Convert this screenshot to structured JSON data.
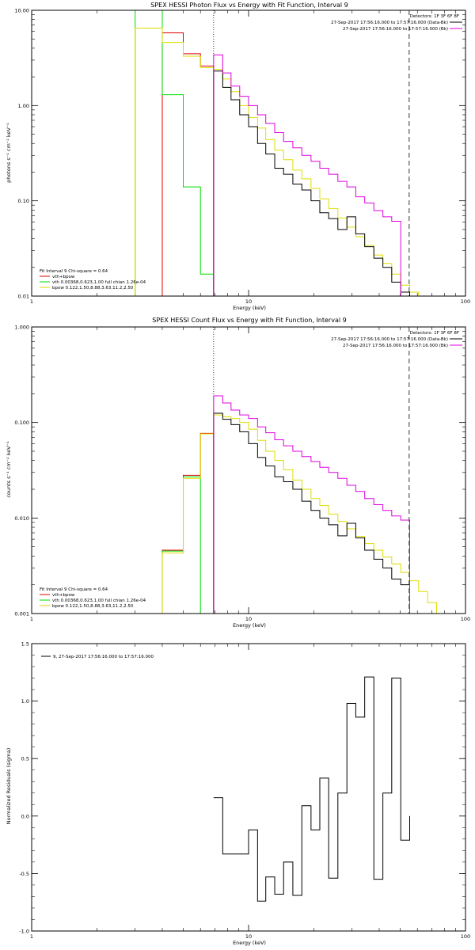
{
  "colors": {
    "data": "#000000",
    "model_total": "#dd00dd",
    "vth": "#00dd00",
    "bpow": "#dddd00",
    "total_fit": "#dd0000",
    "marker": "#000000"
  },
  "chart_data": [
    {
      "type": "line",
      "title": "SPEX HESSI Photon Flux vs Energy with Fit Function, Interval 9",
      "xlabel": "Energy (keV)",
      "ylabel": "photons s⁻¹ cm⁻² keV⁻¹",
      "xscale": "log",
      "yscale": "log",
      "xlim": [
        1,
        100
      ],
      "ylim": [
        0.01,
        10
      ],
      "xticks": [
        1,
        10,
        100
      ],
      "xtick_labels": [
        "1",
        "10",
        "100"
      ],
      "yticks": [
        0.01,
        0.1,
        1,
        10
      ],
      "ytick_labels": [
        "0.01",
        "0.10",
        "1.00",
        "10.00"
      ],
      "vlines": [
        {
          "x": 6.9,
          "style": "dotted"
        },
        {
          "x": 55,
          "style": "dashed"
        }
      ],
      "edges": [
        3,
        4,
        5,
        6,
        6.9,
        7.6,
        8.3,
        9.1,
        10,
        11,
        12,
        13.2,
        14.5,
        16,
        17.6,
        19.4,
        21.3,
        23.4,
        25.8,
        28.4,
        31.2,
        34.3,
        37.8,
        41.6,
        45.7,
        50.3,
        55.3,
        60.8,
        66.9,
        73.6
      ],
      "series": [
        {
          "name": "vth+bpow",
          "color": "#dd0000",
          "values": [
            null,
            5.8,
            3.5,
            2.6,
            null,
            null,
            null,
            null,
            null,
            null,
            null,
            null,
            null,
            null,
            null,
            null,
            null,
            null,
            null,
            null,
            null,
            null,
            null,
            null,
            null,
            null,
            null,
            null,
            null
          ]
        },
        {
          "name": "vth 0.00368,0.623,1.00  full chian 1.26e-04",
          "color": "#00dd00",
          "values": [
            10,
            1.3,
            0.14,
            0.017,
            null,
            null,
            null,
            null,
            null,
            null,
            null,
            null,
            null,
            null,
            null,
            null,
            null,
            null,
            null,
            null,
            null,
            null,
            null,
            null,
            null,
            null,
            null,
            null,
            null
          ]
        },
        {
          "name": "bpow 0.122,1.50,8.88,3.63,11.2,2.50",
          "color": "#dddd00",
          "values": [
            6.5,
            4.6,
            3.3,
            2.5,
            2.4,
            1.9,
            1.4,
            1.0,
            0.75,
            0.58,
            0.44,
            0.34,
            0.27,
            0.21,
            0.17,
            0.135,
            0.105,
            0.083,
            0.066,
            0.053,
            0.042,
            0.034,
            0.027,
            0.022,
            0.017,
            0.013,
            0.011,
            0.01,
            0.009
          ]
        },
        {
          "name": "Detectors: 1F 3F 6F 8F  27-Sep-2017 17:56:16.000 to 17:57:16.000 (Data-Bk)",
          "color": "#000000",
          "values": [
            null,
            null,
            null,
            null,
            2.3,
            1.55,
            1.15,
            0.8,
            0.6,
            0.4,
            0.31,
            0.22,
            0.19,
            0.15,
            0.13,
            0.1,
            0.075,
            0.065,
            0.05,
            0.068,
            0.045,
            0.033,
            0.025,
            0.02,
            0.014,
            0.011,
            null,
            null,
            null
          ]
        },
        {
          "name": "27-Sep-2017 17:56:16.000 to 17:57:16.000 (Bk)",
          "color": "#dd00dd",
          "values": [
            null,
            null,
            null,
            null,
            3.4,
            2.2,
            1.6,
            1.25,
            1.0,
            0.8,
            0.65,
            0.52,
            0.42,
            0.36,
            0.3,
            0.26,
            0.22,
            0.19,
            0.16,
            0.14,
            0.11,
            0.095,
            0.079,
            0.068,
            0.061,
            null,
            null,
            null,
            null
          ]
        }
      ],
      "legend": {
        "position": "bottom-left",
        "header": "Fit Interval 9   Chi-square = 0.64",
        "entries": [
          {
            "label": "vth+bpow",
            "color": "#dd0000"
          },
          {
            "label": "vth 0.00368,0.623,1.00  full chian 1.26e-04",
            "color": "#00dd00"
          },
          {
            "label": "bpow 0.122,1.50,8.88,3.63,11.2,2.50",
            "color": "#dddd00"
          }
        ]
      },
      "legend2": {
        "position": "top-right",
        "header": "Detectors: 1F 3F 6F 8F",
        "entries": [
          {
            "label": "27-Sep-2017 17:56:16.000 to 17:57:16.000 (Data-Bk)",
            "color": "#000000"
          },
          {
            "label": "27-Sep-2017 17:56:16.000 to 17:57:16.000 (Bk)",
            "color": "#dd00dd"
          }
        ]
      }
    },
    {
      "type": "line",
      "title": "SPEX HESSI Count Flux vs Energy with Fit Function, Interval 9",
      "xlabel": "Energy (keV)",
      "ylabel": "counts s⁻¹ cm⁻² keV⁻¹",
      "xscale": "log",
      "yscale": "log",
      "xlim": [
        1,
        100
      ],
      "ylim": [
        0.001,
        1
      ],
      "xticks": [
        1,
        10,
        100
      ],
      "xtick_labels": [
        "1",
        "10",
        "100"
      ],
      "yticks": [
        0.001,
        0.01,
        0.1,
        1
      ],
      "ytick_labels": [
        "0.001",
        "0.010",
        "0.100",
        "1.000"
      ],
      "vlines": [
        {
          "x": 6.9,
          "style": "dotted"
        },
        {
          "x": 55,
          "style": "dashed"
        }
      ],
      "edges": [
        4,
        5,
        6,
        6.9,
        7.6,
        8.3,
        9.1,
        10,
        11,
        12,
        13.2,
        14.5,
        16,
        17.6,
        19.4,
        21.3,
        23.4,
        25.8,
        28.4,
        31.2,
        34.3,
        37.8,
        41.6,
        45.7,
        50.3,
        55.3,
        60.8,
        66.9,
        73.6,
        81
      ],
      "series": [
        {
          "name": "vth+bpow",
          "color": "#dd0000",
          "values": [
            0.0046,
            0.028,
            0.077,
            null,
            null,
            null,
            null,
            null,
            null,
            null,
            null,
            null,
            null,
            null,
            null,
            null,
            null,
            null,
            null,
            null,
            null,
            null,
            null,
            null,
            null,
            null,
            null,
            null,
            null
          ]
        },
        {
          "name": "vth 0.00368,0.623,1.00  full chian 1.26e-04",
          "color": "#00dd00",
          "values": [
            0.0045,
            0.027,
            null,
            null,
            null,
            null,
            null,
            null,
            null,
            null,
            null,
            null,
            null,
            null,
            null,
            null,
            null,
            null,
            null,
            null,
            null,
            null,
            null,
            null,
            null,
            null,
            null,
            null,
            null
          ]
        },
        {
          "name": "bpow 0.122,1.50,8.88,3.63,11.2,2.50",
          "color": "#dddd00",
          "values": [
            0.0043,
            0.026,
            0.076,
            0.12,
            0.115,
            0.11,
            0.1,
            0.085,
            0.065,
            0.05,
            0.04,
            0.032,
            0.025,
            0.02,
            0.016,
            0.0135,
            0.011,
            0.0092,
            0.0077,
            0.0064,
            0.0054,
            0.0046,
            0.0039,
            0.0033,
            0.0027,
            0.0022,
            0.0017,
            0.0013,
            0.001
          ]
        },
        {
          "name": "Detectors: 1F 3F 6F 8F  27-Sep-2017 17:56:16.000 to 17:57:16.000 (Data-Bk)",
          "color": "#000000",
          "values": [
            null,
            null,
            null,
            0.125,
            0.108,
            0.095,
            0.08,
            0.06,
            0.043,
            0.035,
            0.027,
            0.024,
            0.02,
            0.015,
            0.012,
            0.01,
            0.0085,
            0.0065,
            0.0088,
            0.0062,
            0.0046,
            0.0037,
            0.003,
            0.0023,
            0.002,
            null,
            null,
            null,
            null
          ]
        },
        {
          "name": "27-Sep-2017 17:56:16.000 to 17:57:16.000 (Bk)",
          "color": "#dd00dd",
          "values": [
            null,
            null,
            null,
            0.19,
            0.16,
            0.135,
            0.12,
            0.11,
            0.09,
            0.078,
            0.066,
            0.057,
            0.05,
            0.044,
            0.039,
            0.034,
            0.03,
            0.026,
            0.022,
            0.019,
            0.016,
            0.0138,
            0.012,
            0.0105,
            0.0095,
            null,
            null,
            null,
            null
          ]
        }
      ],
      "legend": {
        "position": "bottom-left",
        "header": "Fit Interval 9   Chi-square = 0.64",
        "entries": [
          {
            "label": "vth+bpow",
            "color": "#dd0000"
          },
          {
            "label": "vth 0.00368,0.623,1.00  full chian 1.26e-04",
            "color": "#00dd00"
          },
          {
            "label": "bpow 0.122,1.50,8.88,3.63,11.2,2.50",
            "color": "#dddd00"
          }
        ]
      },
      "legend2": {
        "position": "top-right",
        "header": "Detectors: 1F 3F 6F 8F",
        "entries": [
          {
            "label": "27-Sep-2017 17:56:16.000 to 17:57:16.000 (Data-Bk)",
            "color": "#000000"
          },
          {
            "label": "27-Sep-2017 17:56:16.000 to 17:57:16.000 (Bk)",
            "color": "#dd00dd"
          }
        ]
      }
    },
    {
      "type": "line",
      "title": "",
      "xlabel": "Energy (keV)",
      "ylabel": "Normalized Residuals (sigma)",
      "xscale": "log",
      "yscale": "linear",
      "xlim": [
        1,
        100
      ],
      "ylim": [
        -1.0,
        1.5
      ],
      "xticks": [
        1,
        10,
        100
      ],
      "xtick_labels": [
        "1",
        "10",
        "100"
      ],
      "yticks": [
        -1.0,
        -0.5,
        0.0,
        0.5,
        1.0,
        1.5
      ],
      "ytick_labels": [
        "-1.0",
        "-0.5",
        "0.0",
        "0.5",
        "1.0",
        "1.5"
      ],
      "edges": [
        6.9,
        7.6,
        8.3,
        9.1,
        10,
        11,
        12,
        13.2,
        14.5,
        16,
        17.6,
        19.4,
        21.3,
        23.4,
        25.8,
        28.4,
        31.2,
        34.3,
        37.8,
        41.6,
        45.7,
        50.3,
        55.3
      ],
      "series": [
        {
          "name": "9, 27-Sep-2017 17:56:16.000 to 17:57:16.000",
          "color": "#000000",
          "values": [
            0.16,
            -0.33,
            -0.33,
            -0.33,
            -0.12,
            -0.74,
            -0.53,
            -0.68,
            -0.4,
            -0.69,
            0.09,
            -0.12,
            0.33,
            -0.54,
            0.2,
            0.98,
            0.86,
            1.21,
            -0.55,
            0.2,
            1.2,
            -0.21
          ]
        }
      ],
      "legend": {
        "position": "top-left",
        "entries": [
          {
            "label": "9, 27-Sep-2017 17:56:16.000 to 17:57:16.000",
            "color": "#000000"
          }
        ]
      }
    }
  ]
}
